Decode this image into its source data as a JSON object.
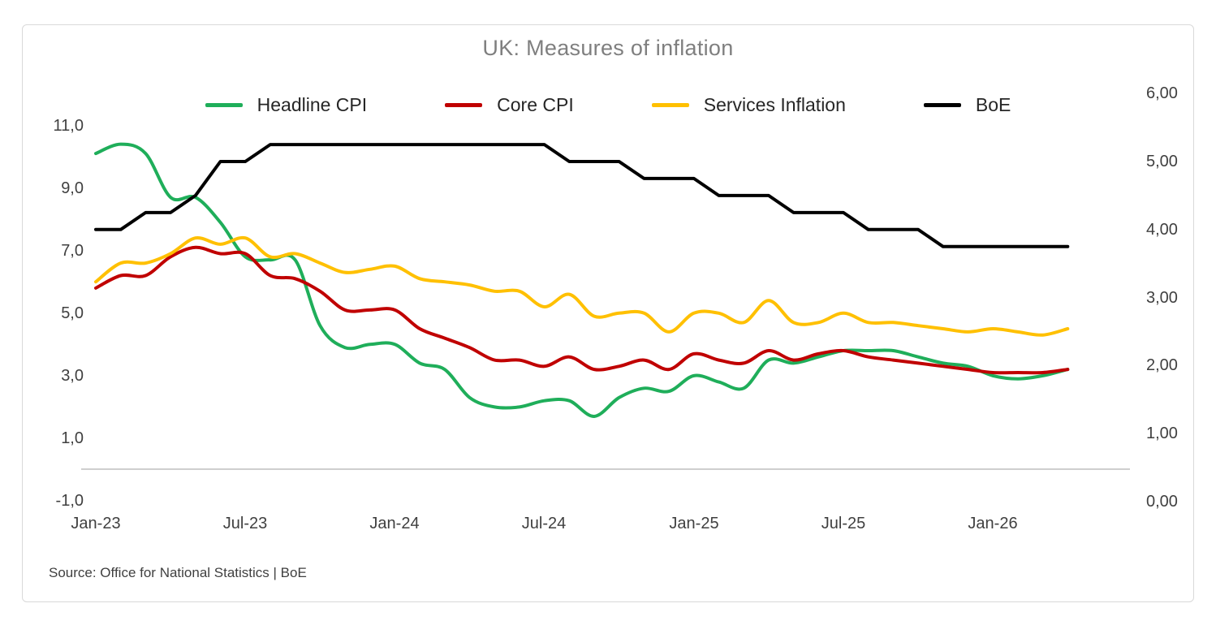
{
  "source": "Source: Office for National Statistics | BoE",
  "chart_data": {
    "type": "line",
    "title": "UK: Measures of inflation",
    "x_tick_labels": [
      "Jan-23",
      "Jul-23",
      "Jan-24",
      "Jul-24",
      "Jan-25",
      "Jul-25",
      "Jan-26"
    ],
    "months": [
      "Jan-23",
      "Feb-23",
      "Mar-23",
      "Apr-23",
      "May-23",
      "Jun-23",
      "Jul-23",
      "Aug-23",
      "Sep-23",
      "Oct-23",
      "Nov-23",
      "Dec-23",
      "Jan-24",
      "Feb-24",
      "Mar-24",
      "Apr-24",
      "May-24",
      "Jun-24",
      "Jul-24",
      "Aug-24",
      "Sep-24",
      "Oct-24",
      "Nov-24",
      "Dec-24",
      "Jan-25",
      "Feb-25",
      "Mar-25",
      "Apr-25",
      "May-25",
      "Jun-25",
      "Jul-25",
      "Aug-25",
      "Sep-25",
      "Oct-25",
      "Nov-25",
      "Dec-25",
      "Jan-26",
      "Feb-26",
      "Mar-26",
      "Apr-26"
    ],
    "series": [
      {
        "name": "Headline CPI",
        "color": "#1fae5a",
        "axis": "left",
        "smooth": true,
        "values": [
          10.1,
          10.4,
          10.1,
          8.7,
          8.7,
          7.9,
          6.8,
          6.7,
          6.7,
          4.6,
          3.9,
          4.0,
          4.0,
          3.4,
          3.2,
          2.3,
          2.0,
          2.0,
          2.2,
          2.2,
          1.7,
          2.3,
          2.6,
          2.5,
          3.0,
          2.8,
          2.6,
          3.5,
          3.4,
          3.6,
          3.8,
          3.8,
          3.8,
          3.6,
          3.4,
          3.3,
          3.0,
          2.9,
          3.0,
          3.2
        ]
      },
      {
        "name": "Core CPI",
        "color": "#c00000",
        "axis": "left",
        "smooth": true,
        "values": [
          5.8,
          6.2,
          6.2,
          6.8,
          7.1,
          6.9,
          6.9,
          6.2,
          6.1,
          5.7,
          5.1,
          5.1,
          5.1,
          4.5,
          4.2,
          3.9,
          3.5,
          3.5,
          3.3,
          3.6,
          3.2,
          3.3,
          3.5,
          3.2,
          3.7,
          3.5,
          3.4,
          3.8,
          3.5,
          3.7,
          3.8,
          3.6,
          3.5,
          3.4,
          3.3,
          3.2,
          3.1,
          3.1,
          3.1,
          3.2
        ]
      },
      {
        "name": "Services Inflation",
        "color": "#ffc000",
        "axis": "left",
        "smooth": true,
        "values": [
          6.0,
          6.6,
          6.6,
          6.9,
          7.4,
          7.2,
          7.4,
          6.8,
          6.9,
          6.6,
          6.3,
          6.4,
          6.5,
          6.1,
          6.0,
          5.9,
          5.7,
          5.7,
          5.2,
          5.6,
          4.9,
          5.0,
          5.0,
          4.4,
          5.0,
          5.0,
          4.7,
          5.4,
          4.7,
          4.7,
          5.0,
          4.7,
          4.7,
          4.6,
          4.5,
          4.4,
          4.5,
          4.4,
          4.3,
          4.5
        ]
      },
      {
        "name": "BoE",
        "color": "#000000",
        "axis": "right",
        "smooth": false,
        "values": [
          4.0,
          4.0,
          4.25,
          4.25,
          4.5,
          5.0,
          5.0,
          5.25,
          5.25,
          5.25,
          5.25,
          5.25,
          5.25,
          5.25,
          5.25,
          5.25,
          5.25,
          5.25,
          5.25,
          5.0,
          5.0,
          5.0,
          4.75,
          4.75,
          4.75,
          4.5,
          4.5,
          4.5,
          4.25,
          4.25,
          4.25,
          4.0,
          4.0,
          4.0,
          3.75,
          3.75,
          3.75,
          3.75,
          3.75,
          3.75
        ]
      }
    ],
    "left_axis": {
      "range": [
        -1,
        11
      ],
      "ticks": [
        11,
        9,
        7,
        5,
        3,
        1,
        -1
      ],
      "labels": [
        "11,0",
        "9,0",
        "7,0",
        "5,0",
        "3,0",
        "1,0",
        "-1,0"
      ]
    },
    "right_axis": {
      "range": [
        0,
        6
      ],
      "ticks": [
        6,
        5,
        4,
        3,
        2,
        1,
        0
      ],
      "labels": [
        "6,00",
        "5,00",
        "4,00",
        "3,00",
        "2,00",
        "1,00",
        "0,00"
      ]
    },
    "grid": "off",
    "legend_position": "top-center"
  }
}
